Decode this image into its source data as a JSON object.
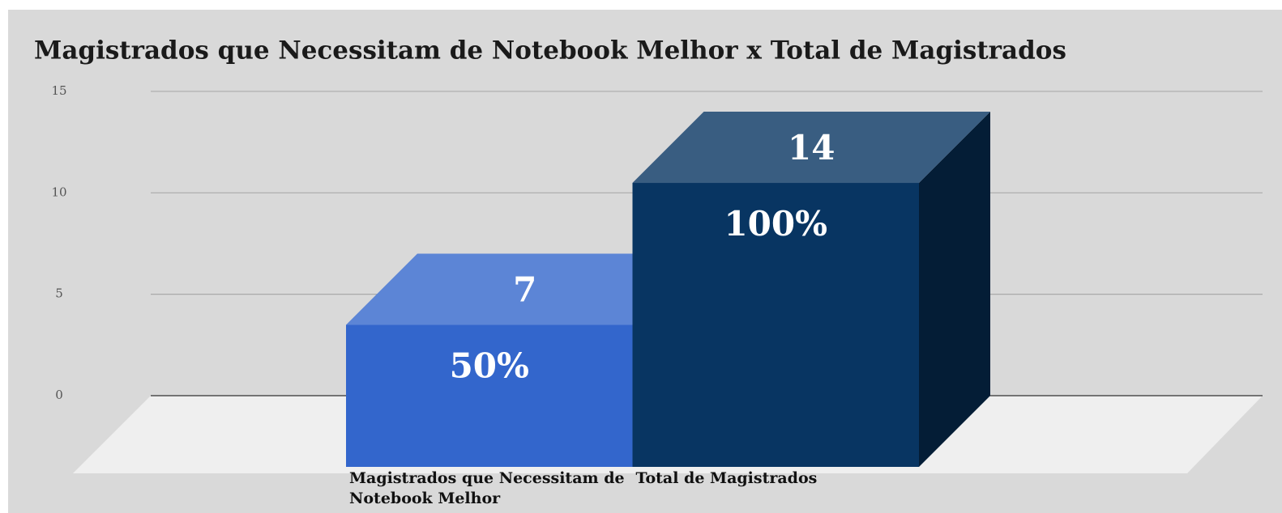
{
  "chart_data": {
    "type": "bar3d",
    "title": "Magistrados que Necessitam de Notebook Melhor x Total de Magistrados",
    "categories": [
      "Magistrados que Necessitam de Notebook Melhor",
      "Total de Magistrados"
    ],
    "values": [
      7,
      14
    ],
    "colors": [
      "#3366cc",
      "#083562"
    ],
    "percentages": {
      "values": [
        50,
        100
      ],
      "value_labels": [
        "50%",
        "100%"
      ]
    },
    "ylim": [
      0,
      15
    ],
    "yticks": [
      0,
      5,
      10,
      15
    ],
    "grid": true
  }
}
